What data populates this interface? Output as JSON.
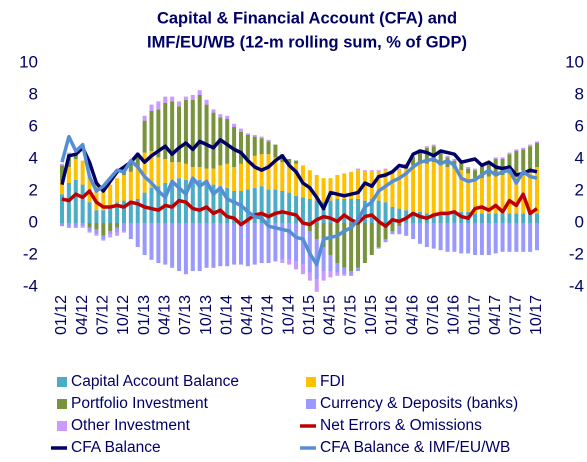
{
  "chart_data": {
    "type": "bar",
    "title": [
      "Capital & Financial Account (CFA) and",
      "IMF/EU/WB (12-m rolling sum, % of GDP)"
    ],
    "categories": [
      "01/12",
      null,
      null,
      "04/12",
      null,
      null,
      "07/12",
      null,
      null,
      "10/12",
      null,
      null,
      "01/13",
      null,
      null,
      "04/13",
      null,
      null,
      "07/13",
      null,
      null,
      "10/13",
      null,
      null,
      "01/14",
      null,
      null,
      "04/14",
      null,
      null,
      "07/14",
      null,
      null,
      "10/14",
      null,
      null,
      "01/15",
      null,
      null,
      "04/15",
      null,
      null,
      "07/15",
      null,
      null,
      "10/15",
      null,
      null,
      "01/16",
      null,
      null,
      "04/16",
      null,
      null,
      "07/16",
      null,
      null,
      "10/16",
      null,
      null,
      "01/17",
      null,
      null,
      "04/17",
      null,
      null,
      "07/17",
      null,
      null,
      "10/17"
    ],
    "ylim": [
      -4,
      10
    ],
    "yticks": [
      -4,
      -2,
      0,
      2,
      4,
      6,
      8,
      10
    ],
    "y2lim": [
      -4,
      10
    ],
    "y2ticks": [
      -4,
      -2,
      0,
      2,
      4,
      6,
      8,
      10
    ],
    "stacked": true,
    "series": [
      {
        "name": "Capital Account Balance",
        "type": "bar",
        "color": "#4bacc6",
        "values": [
          1.8,
          2.5,
          2.7,
          2.4,
          1.3,
          0.8,
          0.8,
          1.0,
          1.3,
          1.4,
          1.4,
          1.5,
          1.9,
          2.2,
          2.3,
          2.5,
          2.6,
          2.8,
          2.7,
          2.6,
          2.7,
          2.6,
          2.4,
          2.3,
          2.2,
          2.0,
          2.0,
          2.1,
          2.2,
          2.3,
          2.1,
          2.1,
          2.0,
          1.9,
          1.7,
          1.6,
          1.5,
          1.4,
          1.3,
          1.4,
          1.5,
          1.5,
          1.5,
          1.5,
          1.4,
          1.5,
          1.4,
          1.3,
          1.0,
          0.9,
          0.8,
          0.7,
          0.7,
          0.6,
          0.6,
          0.6,
          0.7,
          0.7,
          0.7,
          0.7,
          0.6,
          0.6,
          0.6,
          0.6,
          0.6,
          0.6,
          0.6,
          0.6,
          0.6,
          0.6
        ]
      },
      {
        "name": "FDI",
        "type": "bar",
        "color": "#ffc000",
        "values": [
          0.8,
          1.0,
          1.3,
          1.5,
          1.7,
          1.8,
          1.5,
          1.4,
          1.5,
          1.6,
          1.8,
          2.0,
          2.5,
          2.3,
          1.8,
          1.5,
          1.2,
          1.0,
          1.0,
          0.9,
          0.8,
          0.8,
          1.0,
          1.3,
          1.5,
          1.5,
          1.7,
          1.9,
          2.0,
          2.0,
          2.2,
          2.0,
          1.8,
          1.8,
          2.0,
          2.0,
          1.8,
          1.6,
          1.5,
          1.4,
          1.5,
          1.6,
          1.7,
          1.8,
          1.8,
          1.7,
          1.8,
          2.0,
          2.2,
          2.4,
          2.6,
          2.9,
          3.0,
          3.1,
          3.2,
          3.0,
          2.8,
          2.7,
          2.6,
          2.4,
          2.2,
          2.2,
          2.3,
          2.4,
          2.4,
          2.5,
          2.6,
          2.7,
          2.8,
          2.9
        ]
      },
      {
        "name": "Portfolio Investment",
        "type": "bar",
        "color": "#77933c",
        "values": [
          1.0,
          0.8,
          0.3,
          0.0,
          -0.3,
          -0.4,
          -0.8,
          -0.5,
          -0.3,
          0.2,
          0.5,
          0.8,
          2.0,
          2.5,
          3.0,
          3.5,
          3.8,
          3.5,
          4.0,
          4.2,
          4.5,
          4.0,
          3.5,
          3.0,
          2.8,
          2.5,
          2.0,
          1.5,
          1.2,
          1.0,
          0.8,
          0.8,
          0.5,
          0.3,
          0.2,
          0.0,
          -0.5,
          -1.0,
          -1.5,
          -2.0,
          -2.5,
          -2.8,
          -3.0,
          -2.8,
          -2.5,
          -2.0,
          -1.5,
          -1.0,
          -0.5,
          -0.2,
          0.2,
          0.5,
          0.8,
          1.0,
          1.0,
          0.8,
          0.6,
          0.5,
          0.4,
          0.3,
          0.5,
          0.7,
          0.8,
          1.0,
          1.0,
          1.2,
          1.3,
          1.3,
          1.4,
          1.5
        ]
      },
      {
        "name": "Currency & Deposits (banks)",
        "type": "bar",
        "color": "#9999ff",
        "values": [
          -0.2,
          -0.3,
          -0.3,
          -0.2,
          -0.2,
          -0.3,
          -0.2,
          -0.2,
          -0.3,
          -0.5,
          -1.0,
          -1.5,
          -2.0,
          -2.3,
          -2.5,
          -2.6,
          -2.8,
          -3.0,
          -3.2,
          -3.0,
          -3.0,
          -2.8,
          -2.8,
          -2.7,
          -2.7,
          -2.6,
          -2.6,
          -2.7,
          -2.6,
          -2.5,
          -2.5,
          -2.4,
          -2.3,
          -2.3,
          -2.4,
          -2.6,
          -2.6,
          -2.5,
          -1.5,
          -1.0,
          -0.6,
          -0.4,
          -0.3,
          -0.2,
          0.0,
          0.0,
          -0.1,
          -0.2,
          -0.2,
          -0.5,
          -0.8,
          -1.0,
          -1.3,
          -1.5,
          -1.6,
          -1.7,
          -1.8,
          -1.8,
          -1.9,
          -1.9,
          -2.0,
          -2.0,
          -2.0,
          -1.9,
          -1.8,
          -1.8,
          -1.8,
          -1.8,
          -1.8,
          -1.7
        ]
      },
      {
        "name": "Other Investment",
        "type": "bar",
        "color": "#cc99ff",
        "values": [
          0.1,
          0.1,
          0.0,
          -0.1,
          -0.1,
          -0.1,
          -0.1,
          -0.2,
          -0.2,
          -0.1,
          0.0,
          0.1,
          0.3,
          0.4,
          0.5,
          0.4,
          0.3,
          0.3,
          0.2,
          0.3,
          0.3,
          0.3,
          0.2,
          0.2,
          0.2,
          0.2,
          0.2,
          0.1,
          0.1,
          0.1,
          0.1,
          0.0,
          -0.2,
          -0.3,
          -0.5,
          -0.6,
          -0.5,
          -0.8,
          -0.6,
          -0.4,
          -0.2,
          -0.1,
          0.0,
          0.1,
          0.1,
          0.1,
          0.1,
          0.1,
          0.1,
          0.1,
          0.1,
          0.1,
          0.1,
          0.1,
          0.1,
          0.1,
          0.1,
          0.1,
          0.1,
          0.1,
          0.1,
          0.1,
          0.1,
          0.1,
          0.1,
          0.1,
          0.1,
          0.1,
          0.1,
          0.1
        ]
      },
      {
        "name": "Net Errors & Omissions",
        "type": "line",
        "color": "#c00000",
        "values": [
          1.5,
          1.4,
          1.8,
          1.6,
          2.0,
          1.3,
          1.0,
          1.0,
          1.1,
          1.0,
          1.3,
          1.2,
          1.0,
          0.9,
          0.8,
          1.1,
          1.0,
          1.4,
          1.3,
          0.9,
          0.8,
          1.0,
          0.6,
          0.8,
          0.4,
          0.3,
          -0.1,
          0.2,
          0.5,
          0.6,
          0.4,
          0.6,
          0.7,
          0.6,
          0.5,
          0.0,
          -0.1,
          0.2,
          0.4,
          0.3,
          0.1,
          0.5,
          0.2,
          0.0,
          0.4,
          0.5,
          0.1,
          -0.2,
          0.2,
          0.1,
          0.3,
          0.6,
          0.4,
          0.3,
          0.5,
          0.6,
          0.6,
          0.7,
          0.4,
          0.3,
          0.9,
          1.0,
          0.8,
          1.1,
          0.7,
          1.4,
          1.1,
          1.8,
          0.6,
          0.9
        ]
      },
      {
        "name": "CFA Balance",
        "type": "line",
        "color": "#000066",
        "values": [
          2.4,
          4.2,
          4.3,
          4.7,
          3.8,
          2.5,
          2.0,
          2.6,
          3.2,
          3.5,
          3.8,
          4.3,
          3.8,
          4.2,
          4.5,
          4.8,
          4.3,
          4.7,
          5.0,
          4.6,
          5.1,
          4.9,
          4.7,
          5.2,
          4.9,
          4.6,
          4.4,
          3.9,
          3.5,
          3.3,
          3.5,
          3.9,
          4.2,
          3.6,
          3.2,
          2.5,
          2.2,
          1.6,
          0.9,
          1.9,
          1.8,
          1.7,
          1.8,
          1.9,
          2.5,
          2.3,
          2.9,
          3.0,
          3.2,
          3.6,
          3.5,
          4.3,
          4.5,
          4.4,
          4.2,
          4.5,
          4.4,
          4.3,
          3.8,
          3.9,
          4.0,
          3.6,
          3.8,
          3.5,
          3.4,
          3.5,
          3.0,
          3.1,
          3.3,
          3.2
        ]
      },
      {
        "name": "CFA Balance & IMF/EU/WB",
        "type": "line",
        "color": "#558ed5",
        "values": [
          3.8,
          5.4,
          4.5,
          4.9,
          2.9,
          2.0,
          2.3,
          2.8,
          3.3,
          3.2,
          3.9,
          3.5,
          2.9,
          2.5,
          2.0,
          1.6,
          2.6,
          2.2,
          1.8,
          2.8,
          2.3,
          2.6,
          1.8,
          2.2,
          1.5,
          1.3,
          1.1,
          0.7,
          0.4,
          0.3,
          -0.2,
          -0.3,
          -0.4,
          -0.5,
          -0.9,
          -1.0,
          -1.9,
          -2.6,
          -1.0,
          -0.9,
          -0.8,
          -0.5,
          -0.3,
          0.2,
          1.0,
          1.3,
          2.0,
          2.3,
          2.6,
          2.8,
          3.1,
          3.5,
          3.8,
          3.9,
          4.0,
          3.7,
          3.9,
          3.6,
          2.8,
          2.6,
          2.7,
          3.0,
          3.3,
          3.0,
          3.2,
          3.3,
          2.5,
          3.2,
          2.9,
          2.8
        ]
      }
    ]
  }
}
